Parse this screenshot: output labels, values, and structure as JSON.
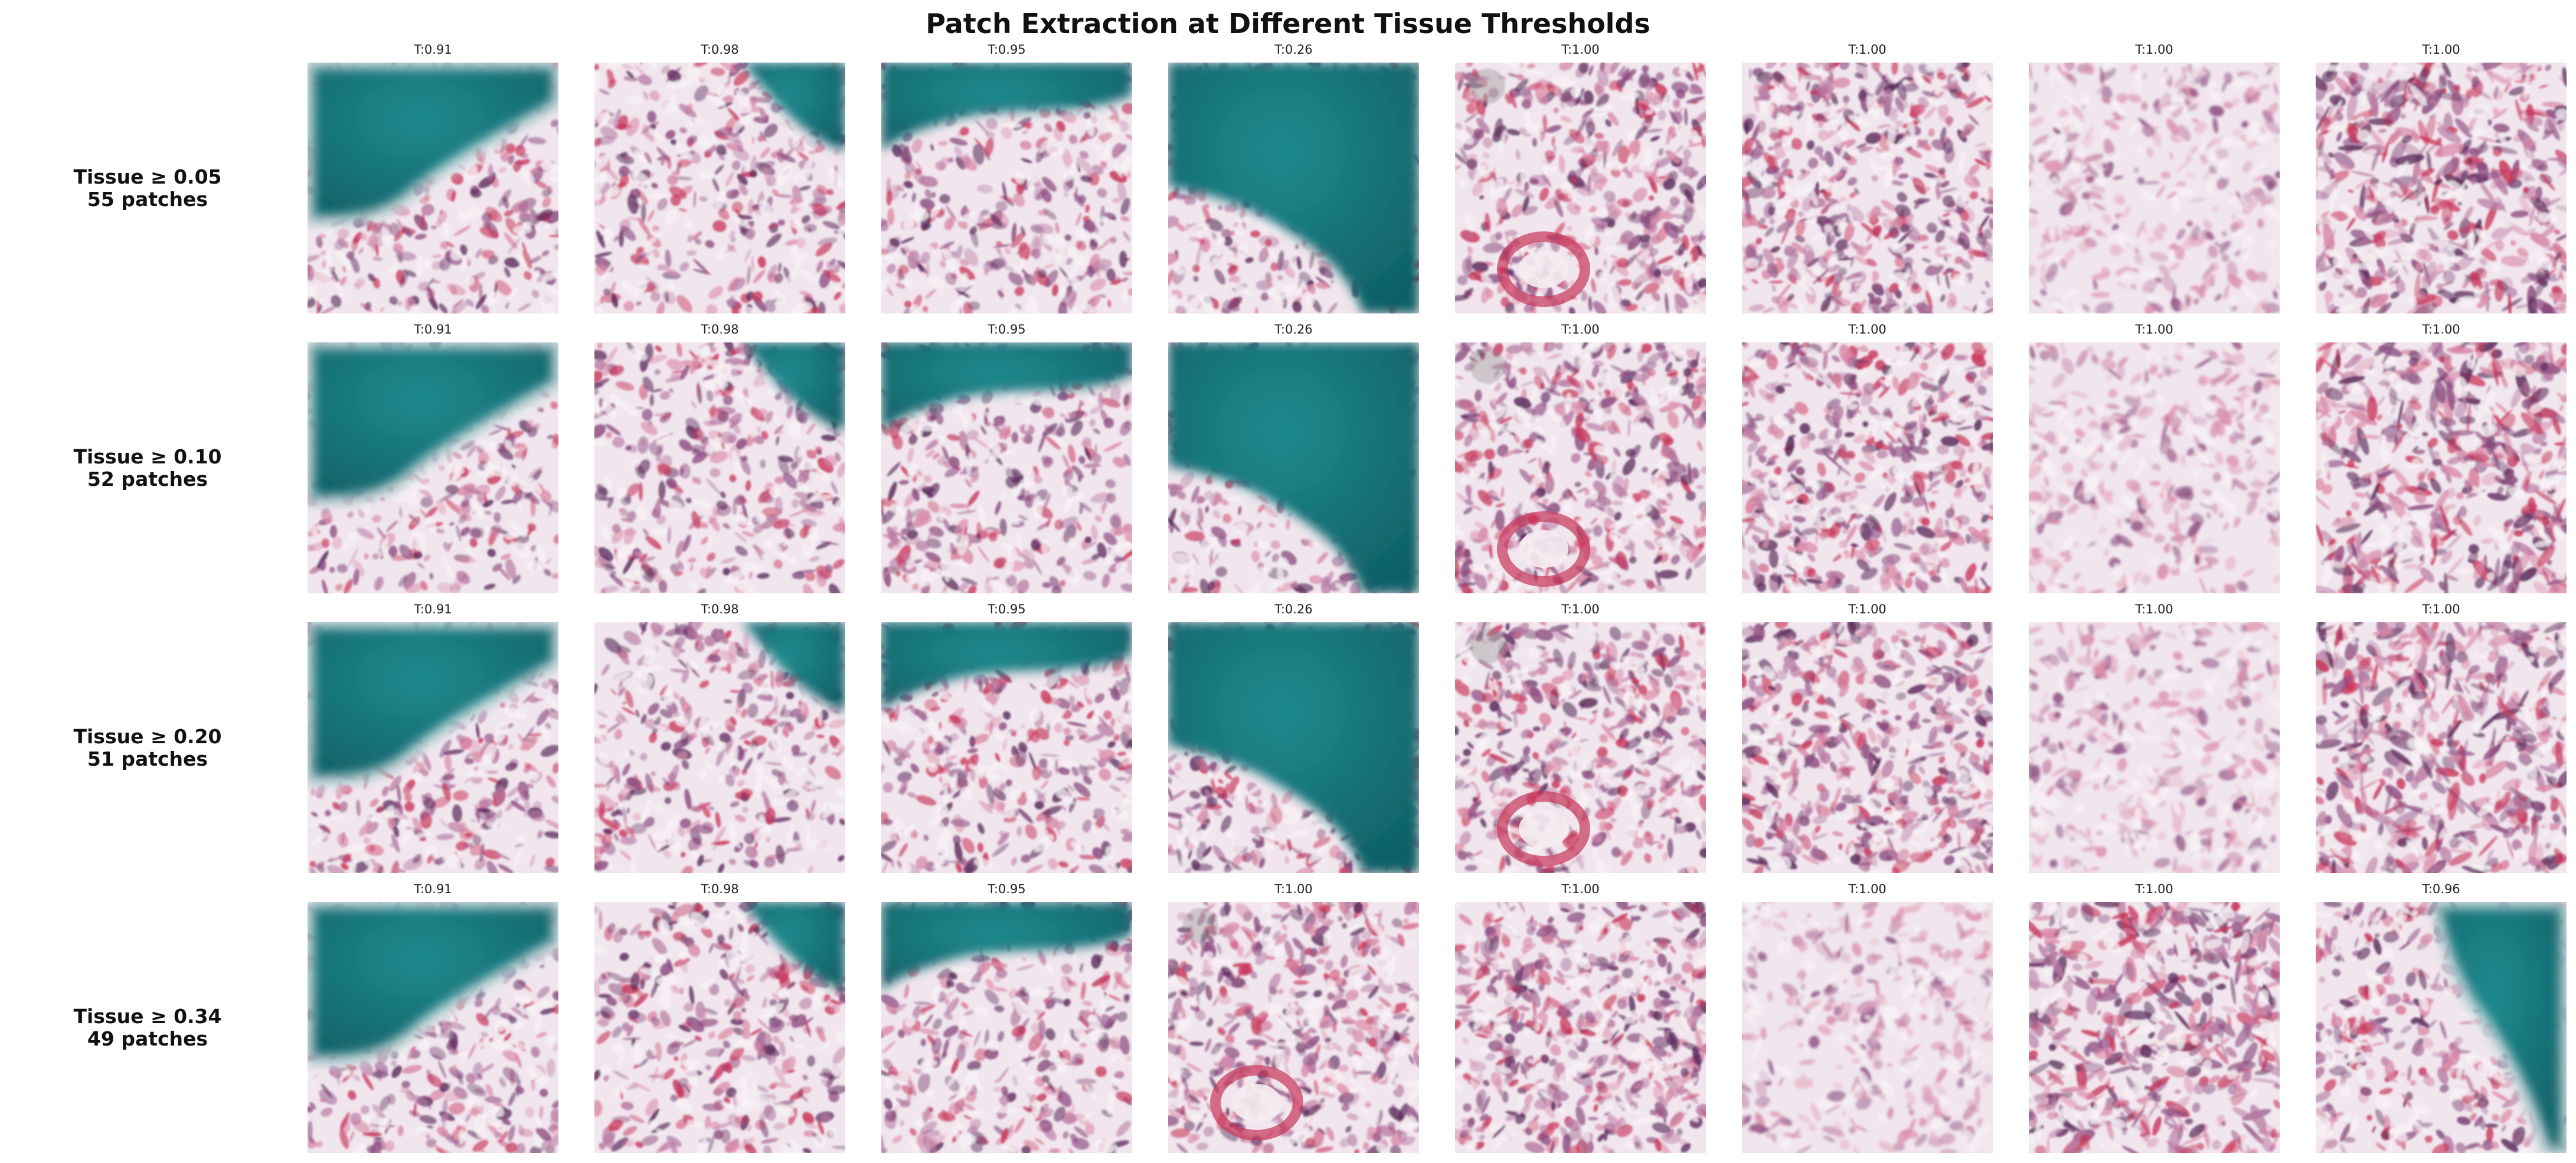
{
  "figure": {
    "title": "Patch Extraction at Different Tissue Thresholds"
  },
  "rows": [
    {
      "threshold_label": "Tissue ≥ 0.05",
      "patch_count_label": "55 patches",
      "patches": [
        {
          "label": "T:0.91",
          "kind": "corner"
        },
        {
          "label": "T:0.98",
          "kind": "topright"
        },
        {
          "label": "T:0.95",
          "kind": "topband"
        },
        {
          "label": "T:0.26",
          "kind": "mostly"
        },
        {
          "label": "T:1.00",
          "kind": "vessel"
        },
        {
          "label": "T:1.00",
          "kind": "dense"
        },
        {
          "label": "T:1.00",
          "kind": "light"
        },
        {
          "label": "T:1.00",
          "kind": "fibrous"
        }
      ]
    },
    {
      "threshold_label": "Tissue ≥ 0.10",
      "patch_count_label": "52 patches",
      "patches": [
        {
          "label": "T:0.91",
          "kind": "corner"
        },
        {
          "label": "T:0.98",
          "kind": "topright"
        },
        {
          "label": "T:0.95",
          "kind": "topband"
        },
        {
          "label": "T:0.26",
          "kind": "mostly"
        },
        {
          "label": "T:1.00",
          "kind": "vessel"
        },
        {
          "label": "T:1.00",
          "kind": "dense"
        },
        {
          "label": "T:1.00",
          "kind": "light"
        },
        {
          "label": "T:1.00",
          "kind": "fibrous"
        }
      ]
    },
    {
      "threshold_label": "Tissue ≥ 0.20",
      "patch_count_label": "51 patches",
      "patches": [
        {
          "label": "T:0.91",
          "kind": "corner"
        },
        {
          "label": "T:0.98",
          "kind": "topright"
        },
        {
          "label": "T:0.95",
          "kind": "topband"
        },
        {
          "label": "T:0.26",
          "kind": "mostly"
        },
        {
          "label": "T:1.00",
          "kind": "vessel"
        },
        {
          "label": "T:1.00",
          "kind": "dense"
        },
        {
          "label": "T:1.00",
          "kind": "light"
        },
        {
          "label": "T:1.00",
          "kind": "fibrous"
        }
      ]
    },
    {
      "threshold_label": "Tissue ≥ 0.34",
      "patch_count_label": "49 patches",
      "patches": [
        {
          "label": "T:0.91",
          "kind": "corner"
        },
        {
          "label": "T:0.98",
          "kind": "topright"
        },
        {
          "label": "T:0.95",
          "kind": "topband"
        },
        {
          "label": "T:1.00",
          "kind": "vessel"
        },
        {
          "label": "T:1.00",
          "kind": "dense"
        },
        {
          "label": "T:1.00",
          "kind": "light"
        },
        {
          "label": "T:1.00",
          "kind": "fibrous"
        },
        {
          "label": "T:0.96",
          "kind": "diag"
        }
      ]
    }
  ],
  "colors": {
    "background_stain": "#1f8a8e",
    "background_stain_dark": "#0f5f66",
    "tissue_light": "#f1e6ee",
    "tissue_pink": "#d98aa8",
    "tissue_purple": "#8a4a7e",
    "tissue_dark": "#5a2a5a",
    "tissue_red": "#c8365a"
  }
}
